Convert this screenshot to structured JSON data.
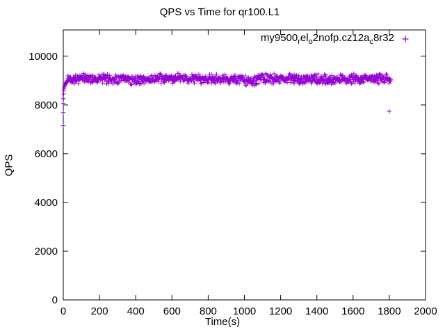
{
  "title": "QPS vs Time for qr100.L1",
  "axes": {
    "xlabel": "Time(s)",
    "ylabel": "QPS",
    "xlim": [
      0,
      2000
    ],
    "ylim": [
      0,
      11080
    ],
    "xticks": [
      0,
      200,
      400,
      600,
      800,
      1000,
      1200,
      1400,
      1600,
      1800,
      2000
    ],
    "yticks": [
      0,
      2000,
      4000,
      6000,
      8000,
      10000
    ],
    "grid": false,
    "border_box": true,
    "ticks_mirrored": true
  },
  "legend": {
    "position": "top-right-inside",
    "label_plain": "my9500_rel_o2nofp.cz12a_c8r32",
    "segments": [
      {
        "text": "my9500",
        "sub": false
      },
      {
        "text": "r",
        "sub": true
      },
      {
        "text": "el",
        "sub": false
      },
      {
        "text": "o",
        "sub": true
      },
      {
        "text": "2nofp.cz12a",
        "sub": false
      },
      {
        "text": "c",
        "sub": true
      },
      {
        "text": "8r32",
        "sub": false
      }
    ],
    "marker": "plus"
  },
  "colors": {
    "series": "#9400D3",
    "axis": "#000000",
    "text": "#000000",
    "background": "#ffffff"
  },
  "chart_data": {
    "type": "scatter",
    "title": "QPS vs Time for qr100.L1",
    "xlabel": "Time(s)",
    "ylabel": "QPS",
    "xlim": [
      0,
      2000
    ],
    "ylim": [
      0,
      11080
    ],
    "legend_position": "top-right",
    "grid": false,
    "series": [
      {
        "name": "my9500_rel_o2nofp.cz12a_c8r32",
        "marker": "plus",
        "color": "#9400D3",
        "description": "QPS ramps from ~7100 at t=0 to a dense steady band around 9050-9100 QPS that runs from t~25s to t~1810s, with slight dip near t~1000-1070 and two low outliers near the end",
        "ramp_points": [
          [
            0,
            7150
          ],
          [
            0,
            7690
          ],
          [
            0,
            8060
          ],
          [
            1,
            8260
          ],
          [
            2,
            8450
          ],
          [
            3,
            8600
          ],
          [
            4,
            8680
          ],
          [
            6,
            8740
          ],
          [
            8,
            8790
          ],
          [
            10,
            8830
          ],
          [
            12,
            8860
          ],
          [
            14,
            8890
          ],
          [
            16,
            8915
          ],
          [
            18,
            8940
          ],
          [
            20,
            8960
          ],
          [
            23,
            8990
          ],
          [
            26,
            9010
          ],
          [
            30,
            9030
          ]
        ],
        "steady_band": {
          "t_start": 24,
          "t_end": 1808,
          "step": 2,
          "mean": 9065,
          "jitter": 235,
          "wobble_amp": 22,
          "wobble_period": 85,
          "seed": 42
        },
        "dip": {
          "t_start": 995,
          "t_end": 1075,
          "delta": -75
        },
        "outliers": [
          [
            1716,
            8940
          ],
          [
            1800,
            7740
          ]
        ]
      }
    ]
  }
}
